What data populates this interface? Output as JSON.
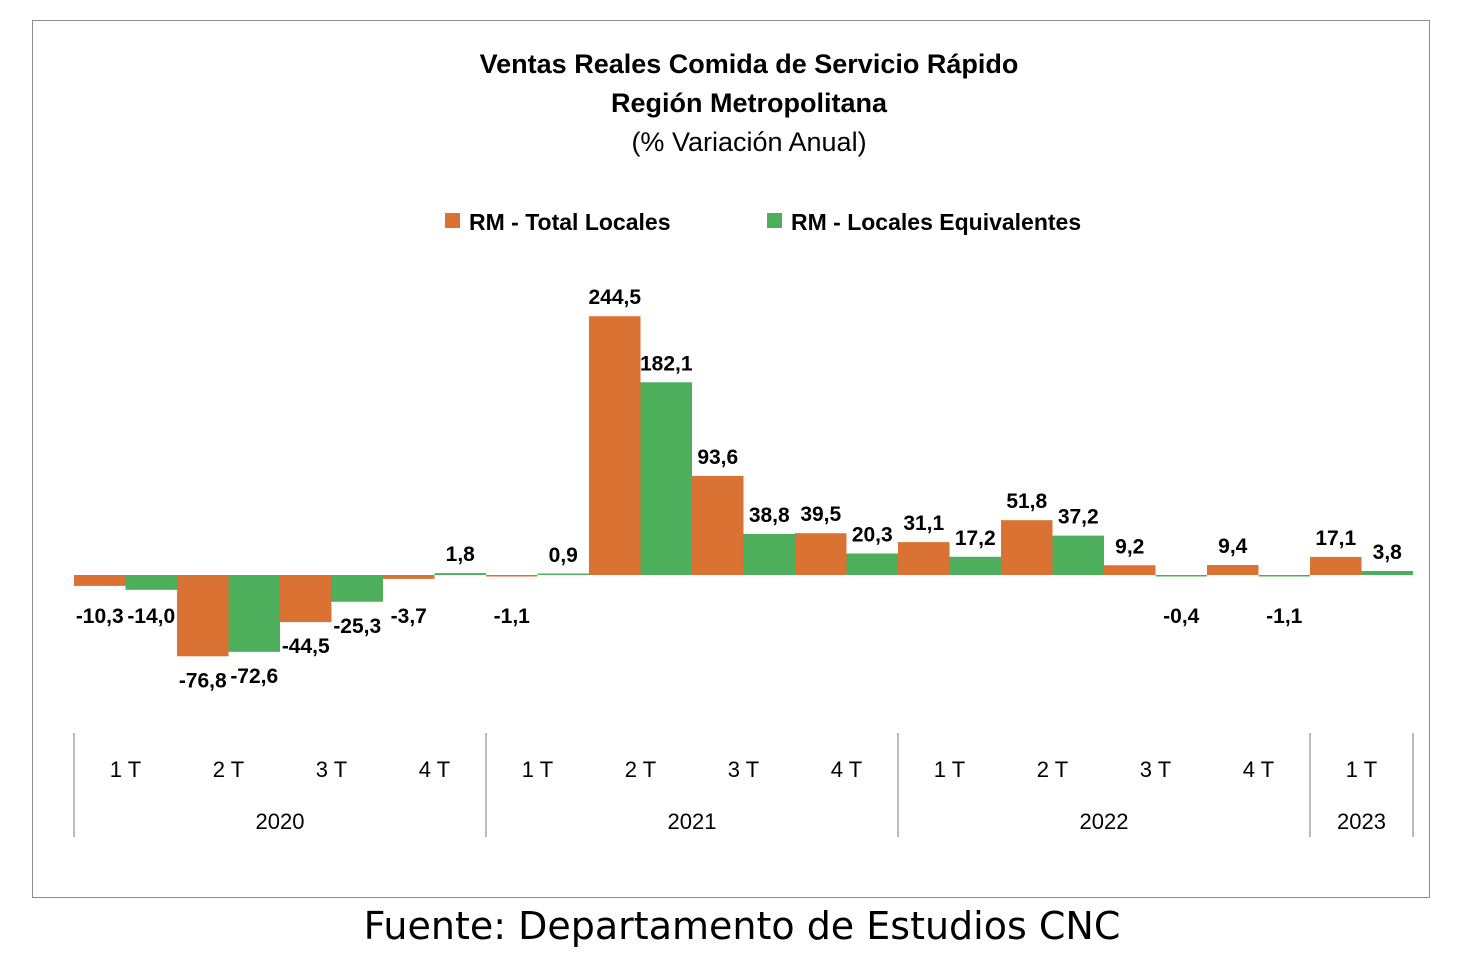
{
  "chart_data": {
    "type": "bar",
    "title": [
      "Ventas Reales Comida de Servicio Rápido",
      "Región Metropolitana"
    ],
    "subtitle": "(% Variación Anual)",
    "categories": [
      "1 T",
      "2 T",
      "3 T",
      "4 T",
      "1 T",
      "2 T",
      "3 T",
      "4 T",
      "1 T",
      "2 T",
      "3 T",
      "4 T",
      "1 T"
    ],
    "groups": [
      {
        "label": "2020",
        "count": 4
      },
      {
        "label": "2021",
        "count": 4
      },
      {
        "label": "2022",
        "count": 4
      },
      {
        "label": "2023",
        "count": 1
      }
    ],
    "series": [
      {
        "name": "RM - Total Locales",
        "color": "#D97232",
        "values": [
          -10.3,
          -76.8,
          -44.5,
          -3.7,
          -1.1,
          244.5,
          93.6,
          39.5,
          31.1,
          51.8,
          9.2,
          9.4,
          17.1
        ],
        "labels": [
          "-10,3",
          "-76,8",
          "-44,5",
          "-3,7",
          "-1,1",
          "244,5",
          "93,6",
          "39,5",
          "31,1",
          "51,8",
          "9,2",
          "9,4",
          "17,1"
        ]
      },
      {
        "name": "RM - Locales Equivalentes",
        "color": "#4DAF5B",
        "values": [
          -14.0,
          -72.6,
          -25.3,
          1.8,
          0.9,
          182.1,
          38.8,
          20.3,
          17.2,
          37.2,
          -0.4,
          -1.1,
          3.8
        ],
        "labels": [
          "-14,0",
          "-72,6",
          "-25,3",
          "1,8",
          "0,9",
          "182,1",
          "38,8",
          "20,3",
          "17,2",
          "37,2",
          "-0,4",
          "-1,1",
          "3,8"
        ]
      }
    ],
    "legend_position": "top",
    "grid": false
  },
  "source": "Fuente: Departamento de Estudios CNC"
}
